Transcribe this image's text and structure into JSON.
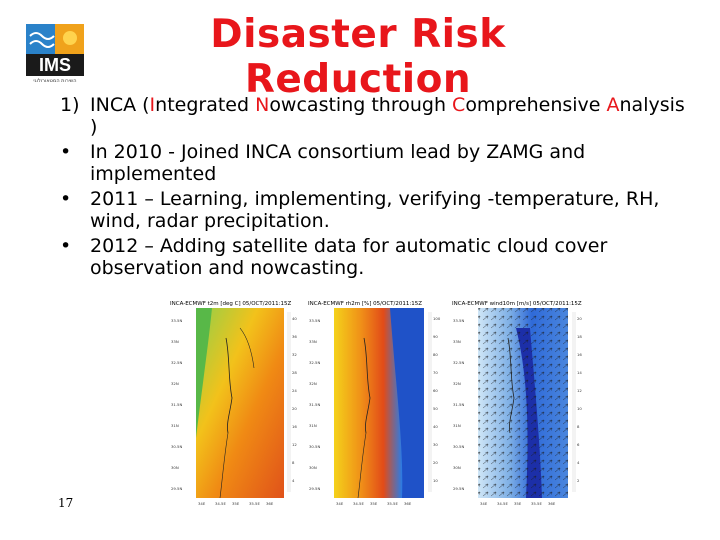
{
  "logo": {
    "text": "IMS",
    "subtitle": "השירות המטאורולוגי",
    "icon": "ims-logo-icon"
  },
  "title": "Disaster Risk Reduction",
  "item1": {
    "marker": "1)",
    "parts": [
      {
        "t": "INCA (",
        "c": "black"
      },
      {
        "t": "I",
        "c": "red"
      },
      {
        "t": "ntegrated ",
        "c": "black"
      },
      {
        "t": "N",
        "c": "red"
      },
      {
        "t": "owcasting through ",
        "c": "black"
      },
      {
        "t": "C",
        "c": "red"
      },
      {
        "t": "omprehensive ",
        "c": "black"
      },
      {
        "t": "A",
        "c": "red"
      },
      {
        "t": "nalysis",
        "c": "black"
      }
    ],
    "close": ")"
  },
  "bullets": [
    {
      "marker": "•",
      "line1": "In 2010 - Joined INCA consortium lead by ZAMG and",
      "line2": "implemented"
    },
    {
      "marker": "•",
      "line1": "2011 – Learning, implementing, verifying -temperature, RH,",
      "line2": "wind, radar precipitation."
    },
    {
      "marker": "•",
      "line1": "2012 – Adding satellite data for automatic cloud cover",
      "line2": "observation and nowcasting."
    }
  ],
  "maps": [
    {
      "header": "INCA-ECMWF t2m [deg C] 05/OCT/2011:15Z",
      "lat_labels": [
        "33.5N",
        "33N",
        "32.5N",
        "32N",
        "31.5N",
        "31N",
        "30.5N",
        "30N",
        "29.5N"
      ],
      "lon_labels": [
        "34E",
        "34.5E",
        "35E",
        "35.5E",
        "36E"
      ],
      "scale": [
        "40",
        "36",
        "32",
        "28",
        "24",
        "20",
        "16",
        "12",
        "8",
        "4"
      ]
    },
    {
      "header": "INCA-ECMWF rh2m [%] 05/OCT/2011:15Z",
      "lat_labels": [
        "33.5N",
        "33N",
        "32.5N",
        "32N",
        "31.5N",
        "31N",
        "30.5N",
        "30N",
        "29.5N"
      ],
      "lon_labels": [
        "34E",
        "34.5E",
        "35E",
        "35.5E",
        "36E"
      ],
      "scale": [
        "100",
        "90",
        "80",
        "70",
        "60",
        "50",
        "40",
        "30",
        "20",
        "10"
      ]
    },
    {
      "header": "INCA-ECMWF wind10m [m/s] 05/OCT/2011:15Z",
      "lat_labels": [
        "33.5N",
        "33N",
        "32.5N",
        "32N",
        "31.5N",
        "31N",
        "30.5N",
        "30N",
        "29.5N"
      ],
      "lon_labels": [
        "34E",
        "34.5E",
        "35E",
        "35.5E",
        "36E"
      ],
      "scale": [
        "20",
        "18",
        "16",
        "14",
        "12",
        "10",
        "8",
        "6",
        "4",
        "2"
      ]
    }
  ],
  "slide_number": "17"
}
